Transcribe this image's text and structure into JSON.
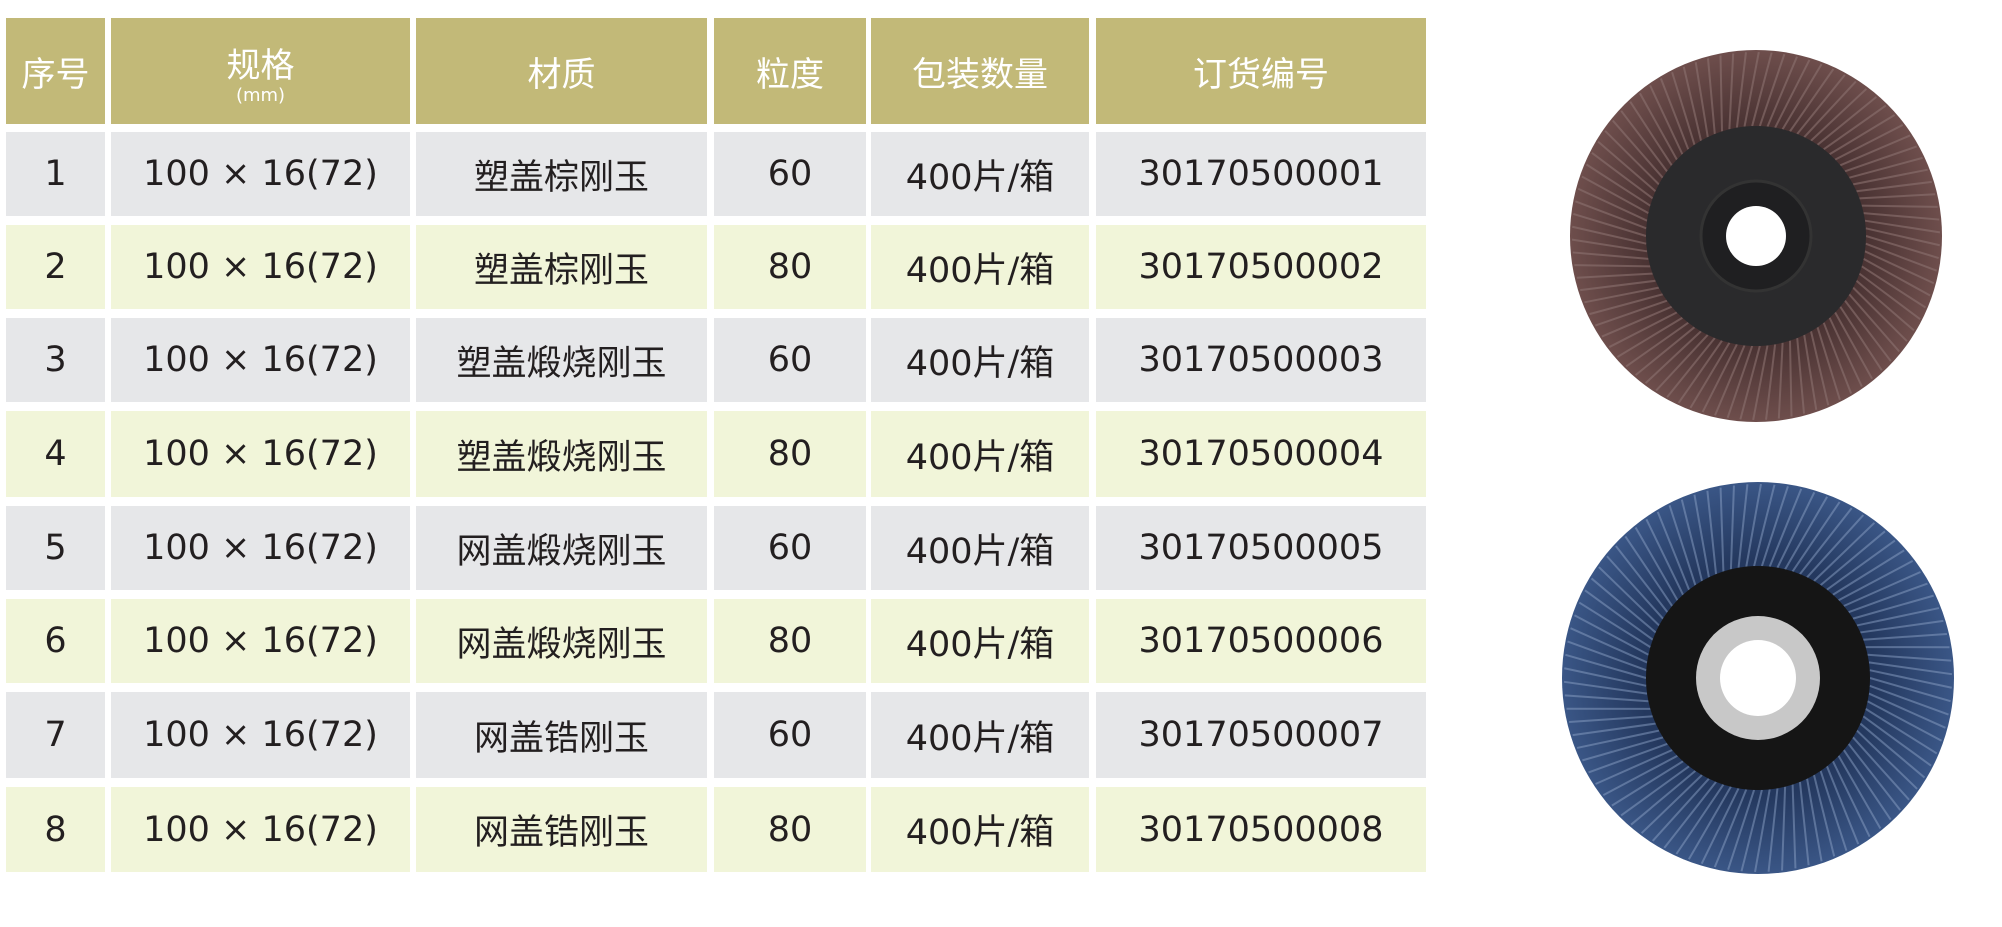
{
  "table": {
    "headers": [
      {
        "label": "序号"
      },
      {
        "label": "规格",
        "sub": "(mm)"
      },
      {
        "label": "材质"
      },
      {
        "label": "粒度"
      },
      {
        "label": "包装数量"
      },
      {
        "label": "订货编号"
      }
    ],
    "rows": [
      [
        "1",
        "100 × 16(72)",
        "塑盖棕刚玉",
        "60",
        "400片/箱",
        "30170500001"
      ],
      [
        "2",
        "100 × 16(72)",
        "塑盖棕刚玉",
        "80",
        "400片/箱",
        "30170500002"
      ],
      [
        "3",
        "100 × 16(72)",
        "塑盖煅烧刚玉",
        "60",
        "400片/箱",
        "30170500003"
      ],
      [
        "4",
        "100 × 16(72)",
        "塑盖煅烧刚玉",
        "80",
        "400片/箱",
        "30170500004"
      ],
      [
        "5",
        "100 × 16(72)",
        "网盖煅烧刚玉",
        "60",
        "400片/箱",
        "30170500005"
      ],
      [
        "6",
        "100 × 16(72)",
        "网盖煅烧刚玉",
        "80",
        "400片/箱",
        "30170500006"
      ],
      [
        "7",
        "100 × 16(72)",
        "网盖锆刚玉",
        "60",
        "400片/箱",
        "30170500007"
      ],
      [
        "8",
        "100 × 16(72)",
        "网盖锆刚玉",
        "80",
        "400片/箱",
        "30170500008"
      ]
    ]
  },
  "colors": {
    "header": "#c2b978",
    "row_gray": "#e6e7e9",
    "row_cream": "#f1f5d9",
    "brown_disc": "#5a3c3a",
    "blue_disc": "#2e4a7a"
  },
  "images": [
    {
      "name": "brown-flap-disc-photo"
    },
    {
      "name": "blue-flap-disc-photo"
    }
  ]
}
